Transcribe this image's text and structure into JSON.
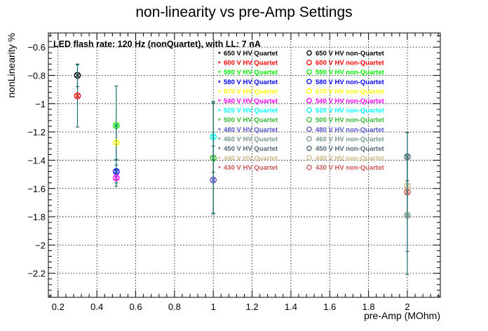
{
  "chart_data": {
    "type": "scatter",
    "title": "non-linearity vs pre-Amp Settings",
    "annotation": "LED flash rate: 120 Hz  (nonQuartet), with LL: 7 nA",
    "xlabel": "pre-Amp (MOhm)",
    "ylabel": "nonLinearity %",
    "xlim": [
      0.15,
      2.17
    ],
    "ylim": [
      -2.37,
      -0.5
    ],
    "x_ticks": [
      0.2,
      0.4,
      0.6,
      0.8,
      1,
      1.2,
      1.4,
      1.6,
      1.8,
      2
    ],
    "x_tick_labels": [
      "0.2",
      "0.4",
      "0.6",
      "0.8",
      "1",
      "1.2",
      "1.4",
      "1.6",
      "1.8",
      "2"
    ],
    "y_ticks": [
      -0.6,
      -0.8,
      -1,
      -1.2,
      -1.4,
      -1.6,
      -1.8,
      -2,
      -2.2
    ],
    "y_tick_labels": [
      "−0.6",
      "−0.8",
      "−1",
      "−1.2",
      "−1.4",
      "−1.6",
      "−1.8",
      "−2",
      "−2.2"
    ],
    "grid": true,
    "legend_placement": "top-right",
    "series": [
      {
        "name": "650 V HV Quartet",
        "color": "#000000",
        "marker": "star"
      },
      {
        "name": "650 V HV non-Quartet",
        "color": "#000000",
        "marker": "open-circle"
      },
      {
        "name": "600 V HV Quartet",
        "color": "#ff0000",
        "marker": "star"
      },
      {
        "name": "600 V HV non-Quartet",
        "color": "#ff0000",
        "marker": "open-circle"
      },
      {
        "name": "590 V HV Quartet",
        "color": "#00ee00",
        "marker": "star"
      },
      {
        "name": "590 V HV non-Quartet",
        "color": "#00ee00",
        "marker": "open-circle"
      },
      {
        "name": "580 V HV Quartet",
        "color": "#0000ff",
        "marker": "star"
      },
      {
        "name": "580 V HV non-Quartet",
        "color": "#0000ff",
        "marker": "open-circle"
      },
      {
        "name": "570 V HV Quartet",
        "color": "#ffff00",
        "marker": "star"
      },
      {
        "name": "570 V HV non-Quartet",
        "color": "#ffff00",
        "marker": "open-circle"
      },
      {
        "name": "540 V HV Quartet",
        "color": "#ff00ff",
        "marker": "star"
      },
      {
        "name": "540 V HV non-Quartet",
        "color": "#ff00ff",
        "marker": "open-circle"
      },
      {
        "name": "520 V HV Quartet",
        "color": "#00ffff",
        "marker": "star"
      },
      {
        "name": "520 V HV non-Quartet",
        "color": "#00ffff",
        "marker": "open-circle"
      },
      {
        "name": "500 V HV Quartet",
        "color": "#33bb33",
        "marker": "star"
      },
      {
        "name": "500 V HV non-Quartet",
        "color": "#33bb33",
        "marker": "open-circle"
      },
      {
        "name": "480 V HV Quartet",
        "color": "#5555cc",
        "marker": "star"
      },
      {
        "name": "480 V HV non-Quartet",
        "color": "#5555cc",
        "marker": "open-circle"
      },
      {
        "name": "460 V HV Quartet",
        "color": "#779988",
        "marker": "star"
      },
      {
        "name": "460 V HV non-Quartet",
        "color": "#779988",
        "marker": "open-circle"
      },
      {
        "name": "450 V HV Quartet",
        "color": "#556677",
        "marker": "star"
      },
      {
        "name": "450 V HV non-Quartet",
        "color": "#556677",
        "marker": "open-circle"
      },
      {
        "name": "440 V HV Quartet",
        "color": "#ccbb88",
        "marker": "star"
      },
      {
        "name": "440 V HV non-Quartet",
        "color": "#ccbb88",
        "marker": "open-circle"
      },
      {
        "name": "430 V HV Quartet",
        "color": "#cc5555",
        "marker": "star"
      },
      {
        "name": "430 V HV non-Quartet",
        "color": "#cc5555",
        "marker": "open-circle"
      }
    ],
    "points": [
      {
        "x": 0.3,
        "y": -0.8,
        "err": 0.08,
        "color": "#000000"
      },
      {
        "x": 0.3,
        "y": -0.945,
        "err": 0.22,
        "color": "#ff0000"
      },
      {
        "x": 0.5,
        "y": -1.155,
        "err": 0.28,
        "color": "#00ee00"
      },
      {
        "x": 0.5,
        "y": -1.275,
        "err": 0.12,
        "color": "#ffff00"
      },
      {
        "x": 0.5,
        "y": -1.48,
        "err": 0.08,
        "color": "#0000ff"
      },
      {
        "x": 0.5,
        "y": -1.525,
        "err": 0.06,
        "color": "#ff00ff"
      },
      {
        "x": 1.0,
        "y": -1.235,
        "err": 0.25,
        "color": "#00ffff"
      },
      {
        "x": 1.0,
        "y": -1.385,
        "err": 0.39,
        "color": "#33bb33"
      },
      {
        "x": 1.0,
        "y": -1.54,
        "err": 0.24,
        "color": "#5555cc"
      },
      {
        "x": 2.0,
        "y": -1.375,
        "err": 0.17,
        "color": "#556677"
      },
      {
        "x": 2.0,
        "y": -1.58,
        "err": 0.21,
        "color": "#ccbb88"
      },
      {
        "x": 2.0,
        "y": -1.625,
        "err": 0.42,
        "color": "#cc5555"
      },
      {
        "x": 2.0,
        "y": -1.79,
        "err": 0.42,
        "color": "#779988"
      }
    ]
  }
}
